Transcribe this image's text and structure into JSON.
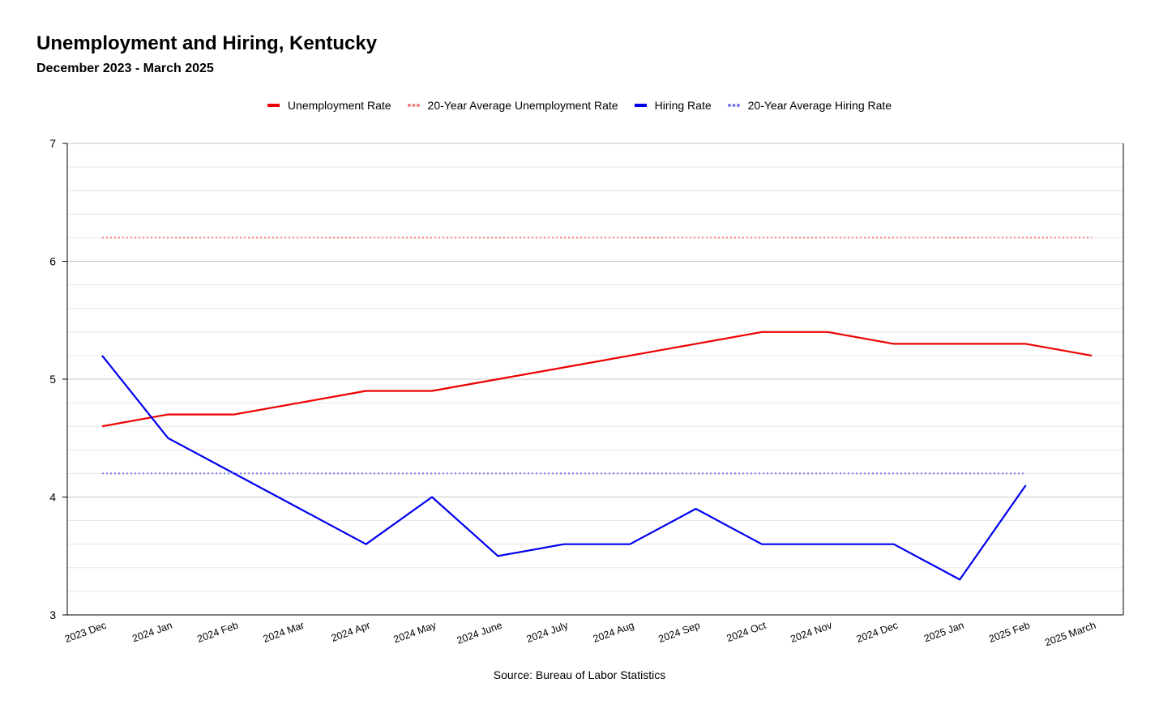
{
  "chart_data": {
    "type": "line",
    "title": "Unemployment and Hiring, Kentucky",
    "subtitle": "December 2023 - March 2025",
    "source": "Source: Bureau of Labor Statistics",
    "categories": [
      "2023 Dec",
      "2024 Jan",
      "2024 Feb",
      "2024 Mar",
      "2024 Apr",
      "2024 May",
      "2024 June",
      "2024 July",
      "2024 Aug",
      "2024 Sep",
      "2024 Oct",
      "2024 Nov",
      "2024 Dec",
      "2025 Jan",
      "2025 Feb",
      "2025 March"
    ],
    "ylim": [
      3,
      7
    ],
    "yticks": [
      "3",
      "4",
      "5",
      "6",
      "7"
    ],
    "grid": true,
    "legend_position": "top-center",
    "series": [
      {
        "name": "Unemployment Rate",
        "color": "#ee0000",
        "style": "solid",
        "values": [
          4.6,
          4.7,
          4.7,
          4.8,
          4.9,
          4.9,
          5.0,
          5.1,
          5.2,
          5.3,
          5.4,
          5.4,
          5.3,
          5.3,
          5.3,
          5.2
        ]
      },
      {
        "name": "20-Year Average Unemployment Rate",
        "color": "#f08080",
        "style": "dotted",
        "values": [
          6.2,
          6.2,
          6.2,
          6.2,
          6.2,
          6.2,
          6.2,
          6.2,
          6.2,
          6.2,
          6.2,
          6.2,
          6.2,
          6.2,
          6.2,
          6.2
        ]
      },
      {
        "name": "Hiring Rate",
        "color": "#0000ee",
        "style": "solid",
        "values": [
          5.2,
          4.5,
          4.2,
          3.9,
          3.6,
          4.0,
          3.5,
          3.6,
          3.6,
          3.9,
          3.6,
          3.6,
          3.6,
          3.3,
          4.1,
          null
        ]
      },
      {
        "name": "20-Year Average Hiring Rate",
        "color": "#7b7bf0",
        "style": "dotted",
        "values": [
          4.2,
          4.2,
          4.2,
          4.2,
          4.2,
          4.2,
          4.2,
          4.2,
          4.2,
          4.2,
          4.2,
          4.2,
          4.2,
          4.2,
          4.2,
          null
        ]
      }
    ]
  }
}
